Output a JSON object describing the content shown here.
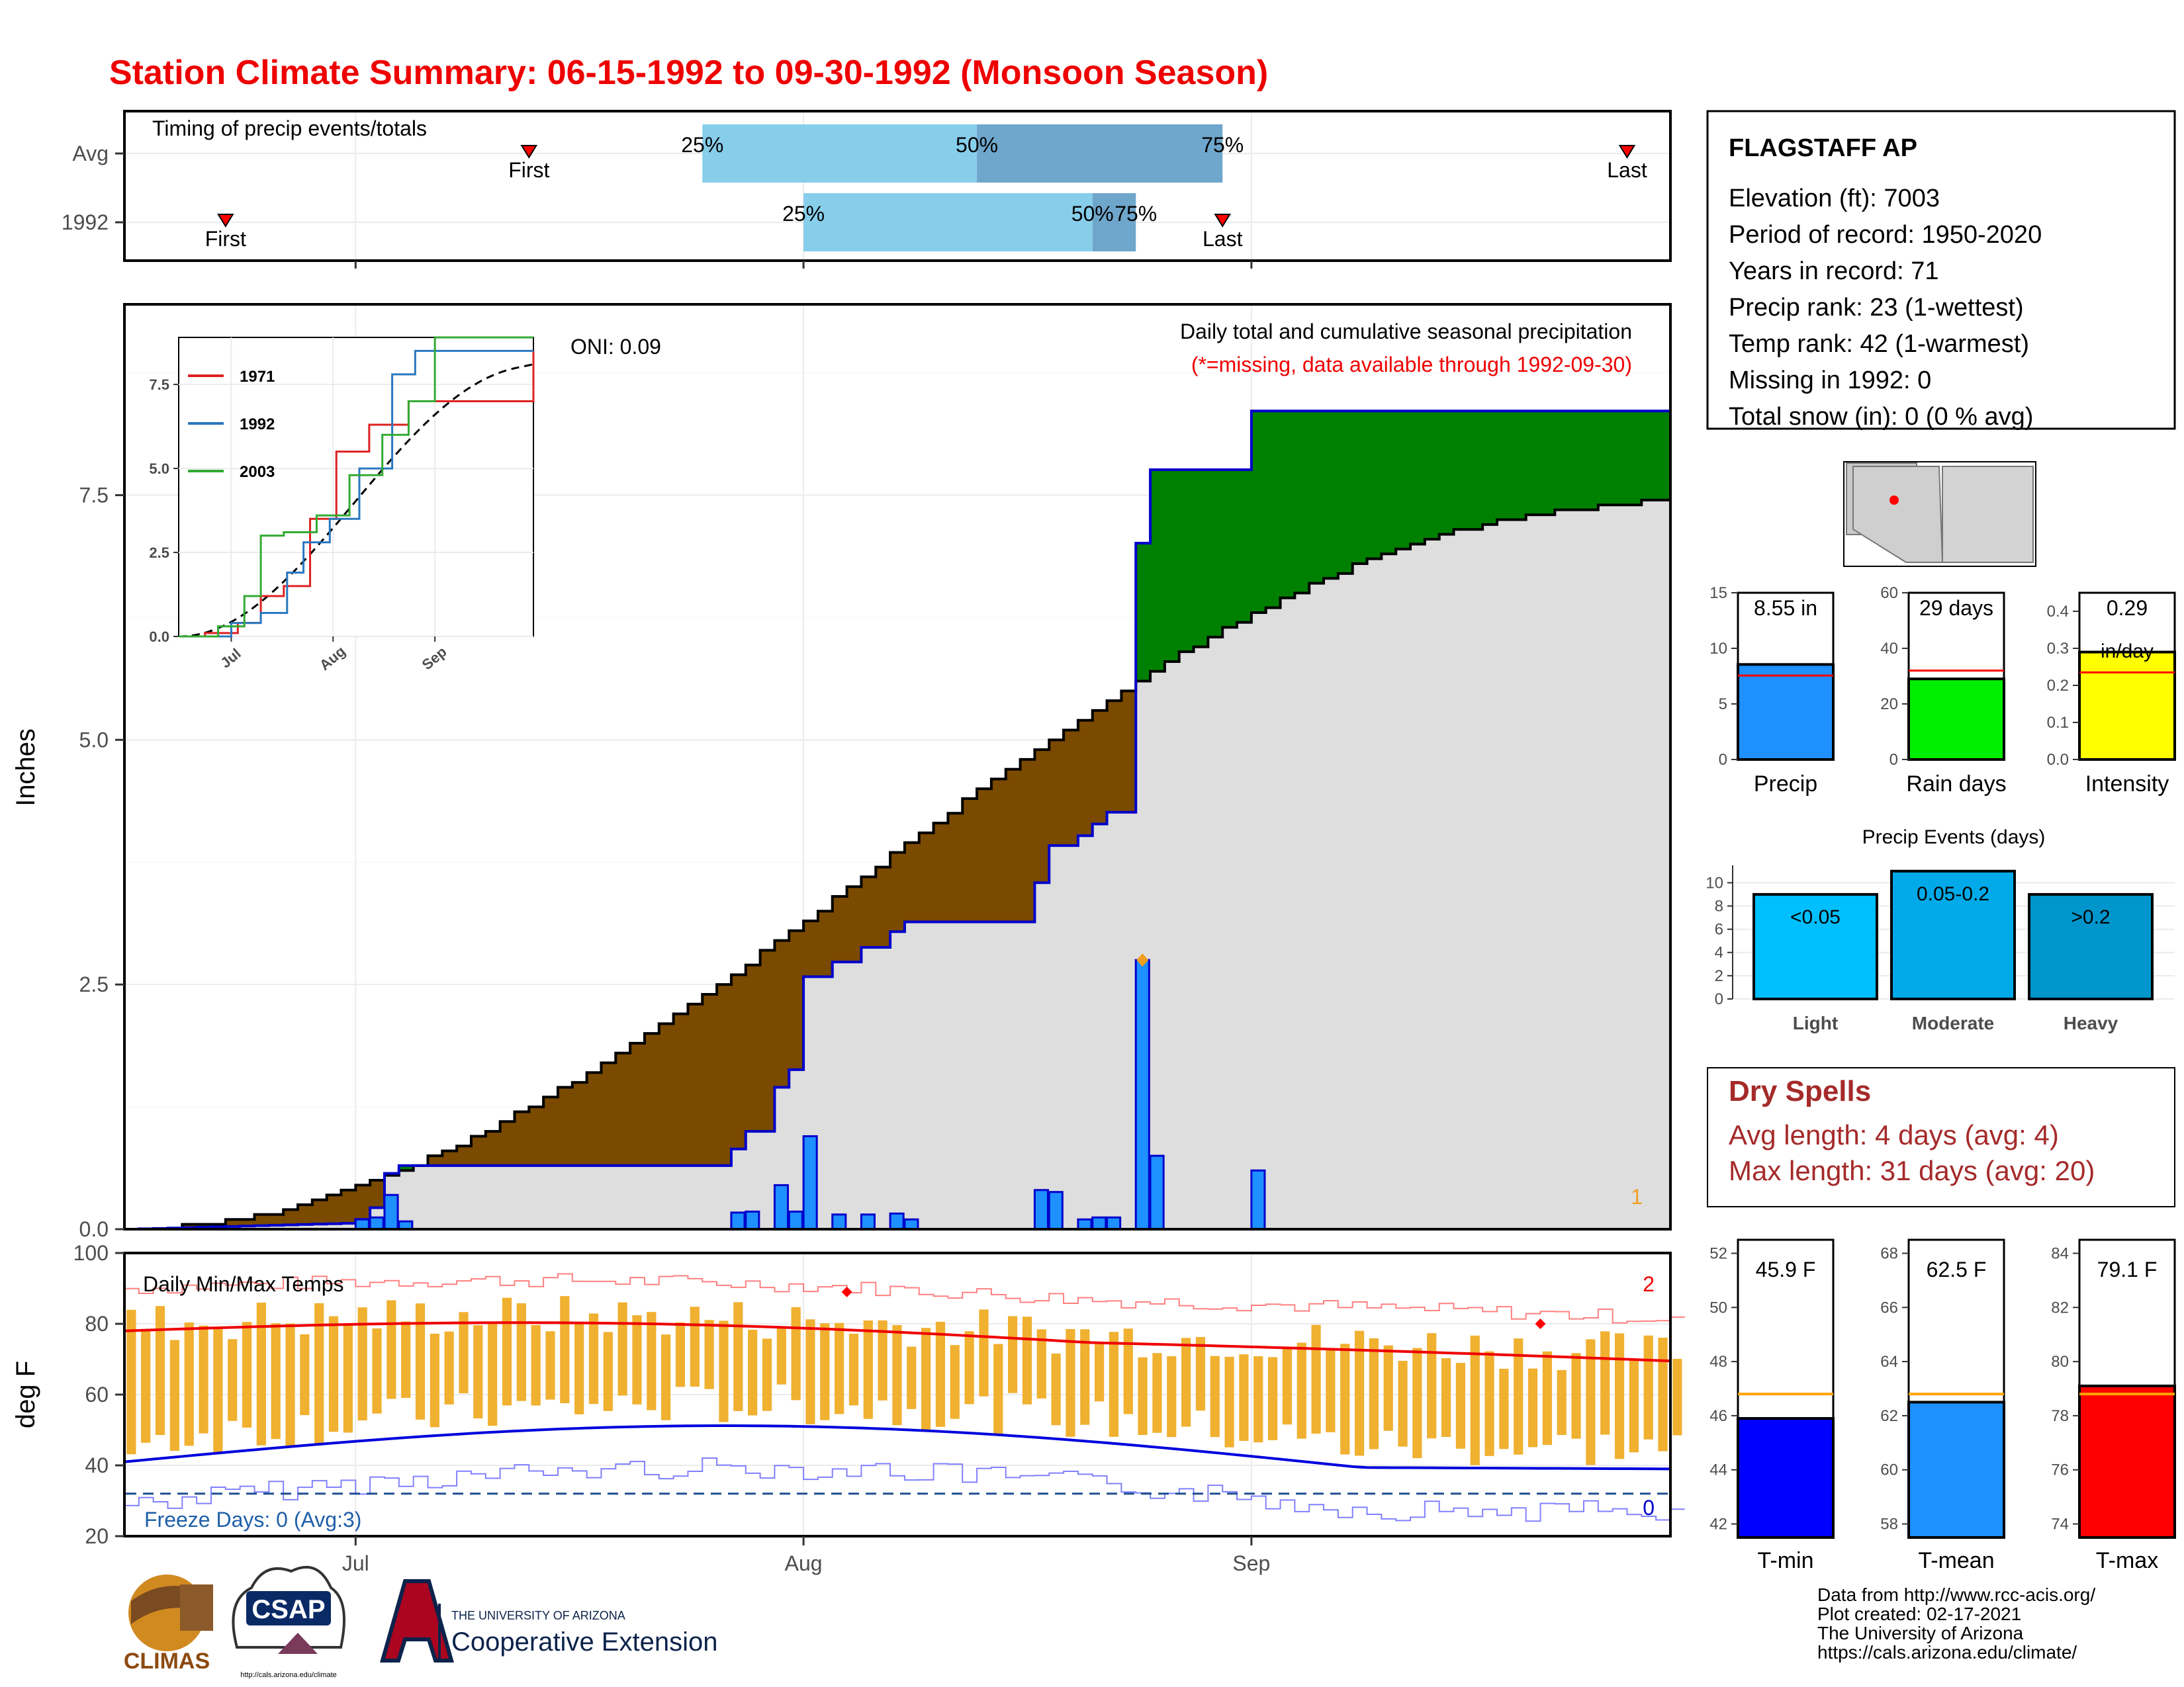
{
  "title": "Station Climate Summary: 06-15-1992 to 09-30-1992 (Monsoon Season)",
  "colors": {
    "title": "#ee0000",
    "avg_fill": "#dedede",
    "above": "#008000",
    "below": "#7a4a00",
    "daily_bar": "#1e90ff",
    "outline_blue": "#0000cc",
    "quartile_light": "#87ceeb",
    "quartile_dark": "#6fa6cc",
    "tmax_line": "#ee0000",
    "tmin_line": "#0000dd",
    "temp_bar": "#f0b030",
    "dry_spell": "#a52a2a",
    "freeze": "#1f5fa8"
  },
  "timing": {
    "title": "Timing of precip events/totals",
    "rows": [
      {
        "label": "Avg",
        "first": {
          "label": "First",
          "date": "1992-07-13"
        },
        "q25": {
          "label": "25%",
          "date": "1992-07-25"
        },
        "q50": {
          "label": "50%",
          "date": "1992-08-13"
        },
        "q75": {
          "label": "75%",
          "date": "1992-08-30"
        },
        "last": {
          "label": "Last",
          "date": "1992-09-27"
        }
      },
      {
        "label": "1992",
        "first": {
          "label": "First",
          "date": "1992-06-22"
        },
        "q25": {
          "label": "25%",
          "date": "1992-08-01"
        },
        "q50": {
          "label": "50%",
          "date": "1992-08-21"
        },
        "q75": {
          "label": "75%",
          "date": "1992-08-24"
        },
        "last": {
          "label": "Last",
          "date": "1992-08-30"
        }
      }
    ]
  },
  "precip_panel": {
    "ylabel": "Inches",
    "yticks": [
      "0.0",
      "2.5",
      "5.0",
      "7.5"
    ],
    "subtitle": "Daily total and cumulative seasonal precipitation",
    "missing_note": "(*=missing, data available through 1992-09-30)",
    "oni": "ONI: 0.09",
    "corner_mark": "1"
  },
  "inset": {
    "yticks": [
      "0.0",
      "2.5",
      "5.0",
      "7.5"
    ],
    "xticks": [
      "Jul",
      "Aug",
      "Sep"
    ],
    "legend": [
      {
        "name": "1971",
        "color": "#dd2222"
      },
      {
        "name": "1992",
        "color": "#2a78c0"
      },
      {
        "name": "2003",
        "color": "#33aa33"
      }
    ]
  },
  "temp_panel": {
    "ylabel": "deg F",
    "yticks": [
      "20",
      "40",
      "60",
      "80",
      "100"
    ],
    "title": "Daily Min/Max Temps",
    "freeze_text": "Freeze Days: 0 (Avg:3)",
    "right_top": "2",
    "right_bottom": "0"
  },
  "xticks": [
    "Jul",
    "Aug",
    "Sep"
  ],
  "station": {
    "name": "FLAGSTAFF AP",
    "lines": [
      "Elevation (ft): 7003",
      "Period of record: 1950-2020",
      "Years in record: 71",
      "Precip rank: 23 (1-wettest)",
      "Temp rank: 42 (1-warmest)",
      "Missing in 1992: 0",
      "Total snow (in): 0 (0 % avg)"
    ]
  },
  "summary_bars": [
    {
      "label": "Precip",
      "value": 8.55,
      "value_label": "8.55 in",
      "avg": 7.55,
      "yticks": [
        "0",
        "5",
        "10",
        "15"
      ],
      "ymax": 15,
      "color": "#1e90ff"
    },
    {
      "label": "Rain days",
      "value": 29,
      "value_label": "29 days",
      "avg": 32,
      "yticks": [
        "0",
        "20",
        "40",
        "60"
      ],
      "ymax": 60,
      "color": "#00ee00"
    },
    {
      "label": "Intensity",
      "value": 0.29,
      "value_label": "0.29",
      "value_unit": "in/day",
      "avg": 0.235,
      "yticks": [
        "0.0",
        "0.1",
        "0.2",
        "0.3",
        "0.4"
      ],
      "ymax": 0.45,
      "color": "#ffff00"
    }
  ],
  "events": {
    "title": "Precip Events (days)",
    "yticks": [
      "0",
      "2",
      "4",
      "6",
      "8",
      "10"
    ],
    "bars": [
      {
        "cat": "Light",
        "value": 9,
        "label": "<0.05",
        "color": "#00bfff"
      },
      {
        "cat": "Moderate",
        "value": 11,
        "label": "0.05-0.2",
        "color": "#00aae8"
      },
      {
        "cat": "Heavy",
        "value": 9,
        "label": ">0.2",
        "color": "#0096cc"
      }
    ]
  },
  "dry_spells": {
    "title": "Dry Spells",
    "avg_text": "Avg length: 4 days (avg: 4)",
    "max_text": "Max length: 31 days (avg: 20)"
  },
  "temp_bars": [
    {
      "label": "T-min",
      "value": 45.9,
      "value_label": "45.9 F",
      "avg": 46.8,
      "ymin": 41.5,
      "ymax": 52.5,
      "yticks": [
        42,
        44,
        46,
        48,
        50,
        52
      ],
      "color": "#0000ff"
    },
    {
      "label": "T-mean",
      "value": 62.5,
      "value_label": "62.5 F",
      "avg": 62.8,
      "ymin": 57.5,
      "ymax": 68.5,
      "yticks": [
        58,
        60,
        62,
        64,
        66,
        68
      ],
      "color": "#1e90ff"
    },
    {
      "label": "T-max",
      "value": 79.1,
      "value_label": "79.1 F",
      "avg": 78.8,
      "ymin": 73.5,
      "ymax": 84.5,
      "yticks": [
        74,
        76,
        78,
        80,
        82,
        84
      ],
      "color": "#ff0000"
    }
  ],
  "footer": {
    "lines": [
      "Data from http://www.rcc-acis.org/",
      "Plot created: 02-17-2021",
      "The University of Arizona",
      "https://cals.arizona.edu/climate/"
    ],
    "logos": {
      "climas": "CLIMAS",
      "csap": "CSAP",
      "csap_url": "http://cals.arizona.edu/climate",
      "ua_small": "THE UNIVERSITY OF ARIZONA",
      "ua_big": "Cooperative Extension"
    }
  },
  "chart_data": [
    {
      "type": "bar",
      "title": "Daily total and cumulative seasonal precipitation",
      "ylabel": "Inches",
      "ylim": [
        0,
        9.45
      ],
      "x_range": [
        "1992-06-15",
        "1992-09-30"
      ],
      "daily_precip": [
        {
          "date": "1992-07-01",
          "value": 0.1
        },
        {
          "date": "1992-07-02",
          "value": 0.12
        },
        {
          "date": "1992-07-03",
          "value": 0.35
        },
        {
          "date": "1992-07-04",
          "value": 0.08
        },
        {
          "date": "1992-07-27",
          "value": 0.17
        },
        {
          "date": "1992-07-28",
          "value": 0.18
        },
        {
          "date": "1992-07-30",
          "value": 0.45
        },
        {
          "date": "1992-07-31",
          "value": 0.18
        },
        {
          "date": "1992-08-01",
          "value": 0.95
        },
        {
          "date": "1992-08-03",
          "value": 0.15
        },
        {
          "date": "1992-08-05",
          "value": 0.15
        },
        {
          "date": "1992-08-07",
          "value": 0.16
        },
        {
          "date": "1992-08-08",
          "value": 0.1
        },
        {
          "date": "1992-08-17",
          "value": 0.4
        },
        {
          "date": "1992-08-18",
          "value": 0.38
        },
        {
          "date": "1992-08-20",
          "value": 0.1
        },
        {
          "date": "1992-08-21",
          "value": 0.12
        },
        {
          "date": "1992-08-22",
          "value": 0.12
        },
        {
          "date": "1992-08-24",
          "value": 2.75
        },
        {
          "date": "1992-08-25",
          "value": 0.75
        },
        {
          "date": "1992-09-01",
          "value": 0.6
        }
      ],
      "max_marker": {
        "date": "1992-08-24",
        "value": 2.75
      },
      "cumulative_1992_total": 8.55,
      "cumulative_avg_total": 7.48
    },
    {
      "type": "line",
      "title": "Inset cumulative precipitation",
      "series": [
        {
          "name": "1971",
          "points": [
            [
              0,
              0
            ],
            [
              8,
              0.1
            ],
            [
              18,
              0.4
            ],
            [
              25,
              1.2
            ],
            [
              32,
              1.5
            ],
            [
              40,
              3.5
            ],
            [
              48,
              5.5
            ],
            [
              58,
              6.3
            ],
            [
              70,
              7.0
            ],
            [
              85,
              7.0
            ],
            [
              100,
              7.0
            ],
            [
              108,
              8.5
            ]
          ]
        },
        {
          "name": "1992",
          "points": [
            [
              0,
              0
            ],
            [
              16,
              0.4
            ],
            [
              25,
              0.7
            ],
            [
              33,
              1.9
            ],
            [
              38,
              2.8
            ],
            [
              46,
              3.5
            ],
            [
              55,
              5.0
            ],
            [
              65,
              7.8
            ],
            [
              72,
              8.5
            ],
            [
              90,
              8.5
            ],
            [
              108,
              8.5
            ]
          ]
        },
        {
          "name": "2003",
          "points": [
            [
              0,
              0
            ],
            [
              12,
              0.3
            ],
            [
              20,
              1.2
            ],
            [
              25,
              3.0
            ],
            [
              32,
              3.1
            ],
            [
              42,
              3.6
            ],
            [
              52,
              4.8
            ],
            [
              62,
              6.0
            ],
            [
              70,
              7.0
            ],
            [
              78,
              9.0
            ],
            [
              108,
              9.5
            ]
          ]
        }
      ],
      "avg_dashed": true,
      "xticks": [
        "Jul",
        "Aug",
        "Sep"
      ],
      "ylim": [
        0,
        8.9
      ]
    },
    {
      "type": "bar",
      "title": "Daily Min/Max Temps",
      "ylabel": "deg F",
      "ylim": [
        20,
        100
      ],
      "avg_tmax_start": 78,
      "avg_tmax_end": 71,
      "avg_tmin_start": 41,
      "avg_tmin_end": 36,
      "freeze_line": 32,
      "record_markers": [
        {
          "date": "1992-08-04",
          "value": 89
        },
        {
          "date": "1992-09-21",
          "value": 80
        }
      ]
    },
    {
      "type": "bar",
      "title": "Precip Events (days)",
      "categories": [
        "Light",
        "Moderate",
        "Heavy"
      ],
      "values": [
        9,
        11,
        9
      ]
    }
  ]
}
